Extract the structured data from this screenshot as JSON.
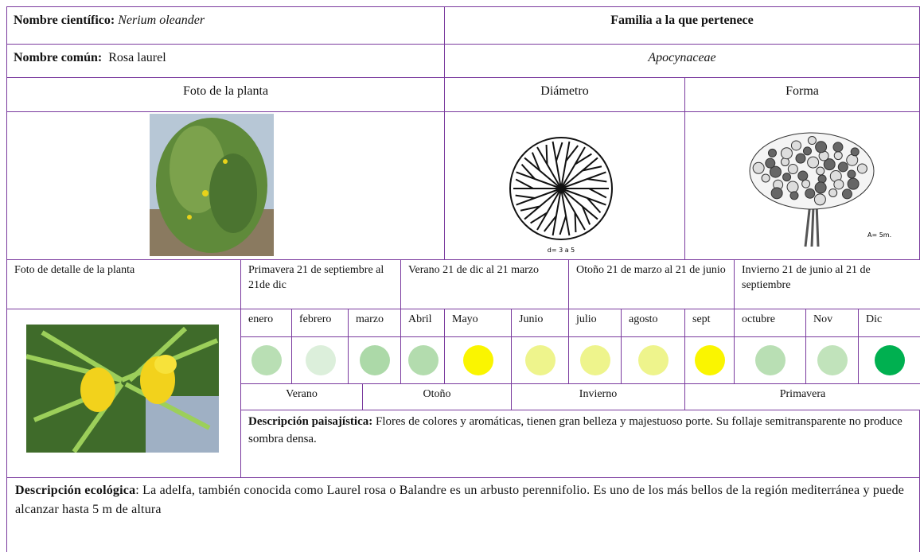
{
  "header": {
    "scientific_name_label": "Nombre científico:",
    "scientific_name": "Nerium oleander",
    "family_label": "Familia a la que pertenece",
    "common_name_label": "Nombre común:",
    "common_name": "Rosa laurel",
    "family": "Apocynaceae"
  },
  "photos": {
    "plant_photo_label": "Foto de la planta",
    "diameter_label": "Diámetro",
    "diameter_note": "d= 3 a 5",
    "shape_label": "Forma",
    "shape_note": "A= 5m.",
    "detail_photo_label": "Foto de detalle de la planta"
  },
  "season_periods": [
    "Primavera 21 de septiembre al 21de dic",
    "Verano 21 de dic al 21 marzo",
    "Otoño 21 de marzo al 21 de junio",
    "Invierno 21 de junio al 21 de septiembre"
  ],
  "months": [
    {
      "name": "enero",
      "color": "#b9dfb4"
    },
    {
      "name": "febrero",
      "color": "#dcefdb"
    },
    {
      "name": "marzo",
      "color": "#acd9a8"
    },
    {
      "name": "Abril",
      "color": "#b3dcae"
    },
    {
      "name": "Mayo",
      "color": "#faf500"
    },
    {
      "name": "Junio",
      "color": "#eef48c"
    },
    {
      "name": "julio",
      "color": "#eef48c"
    },
    {
      "name": "agosto",
      "color": "#eef48c"
    },
    {
      "name": "sept",
      "color": "#faf500"
    },
    {
      "name": "octubre",
      "color": "#b9dfb4"
    },
    {
      "name": "Nov",
      "color": "#c1e3bb"
    },
    {
      "name": "Dic",
      "color": "#00b050"
    }
  ],
  "seasons": [
    "Verano",
    "Otoño",
    "Invierno",
    "Primavera"
  ],
  "landscape_description": {
    "label": "Descripción paisajística:",
    "text": "Flores de colores y aromáticas, tienen gran belleza y majestuoso porte. Su follaje semitransparente no produce sombra densa."
  },
  "ecological_description": {
    "label": "Descripción ecológica",
    "text": ": La adelfa, también conocida como Laurel rosa o Balandre es un arbusto perennifolio. Es uno de los más bellos de la región mediterránea y puede alcanzar hasta 5 m de altura"
  }
}
